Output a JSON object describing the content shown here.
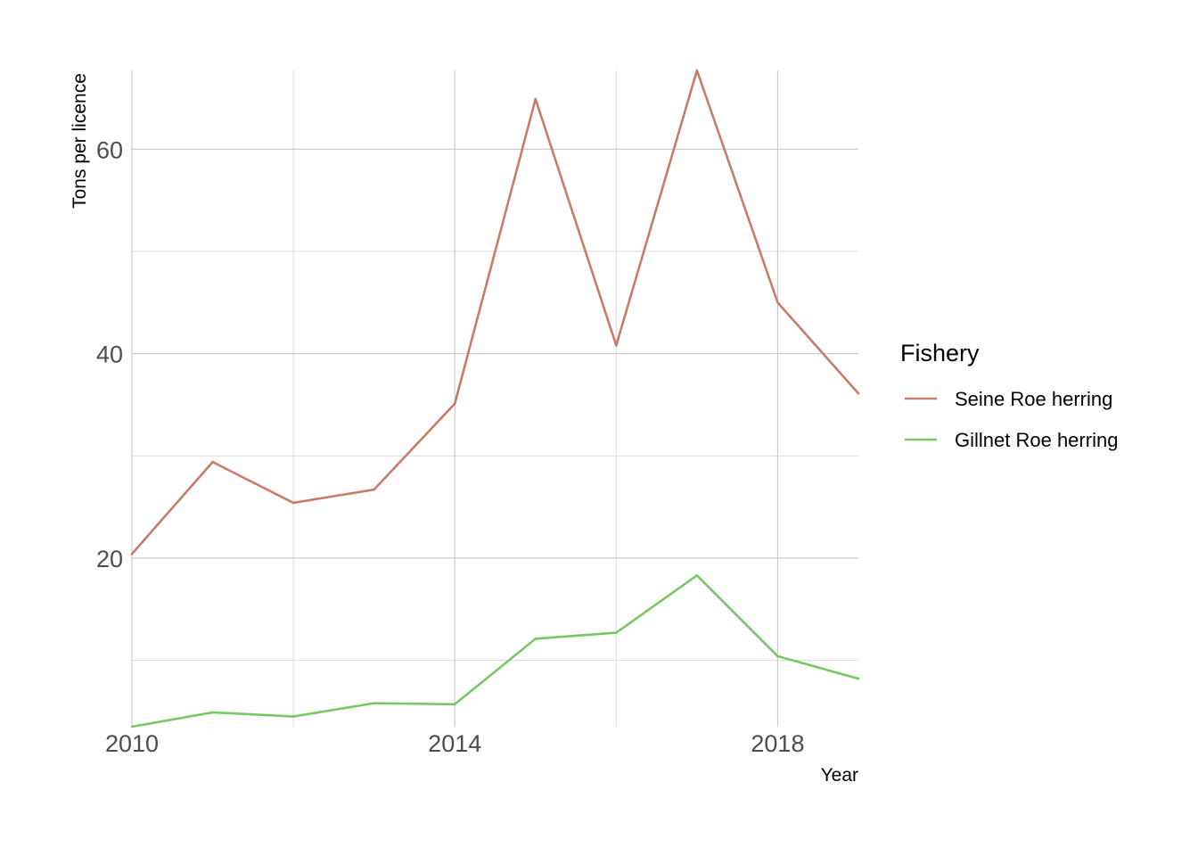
{
  "chart_data": {
    "type": "line",
    "title": "",
    "xlabel": "Year",
    "ylabel": "Tons per licence",
    "x": [
      2010,
      2011,
      2012,
      2013,
      2014,
      2015,
      2016,
      2017,
      2018,
      2019
    ],
    "xlim": [
      2010,
      2019
    ],
    "ylim": [
      3.5,
      67.7
    ],
    "x_ticks": [
      2010,
      2014,
      2018
    ],
    "x_tick_labels": [
      "2010",
      "2014",
      "2018"
    ],
    "y_ticks": [
      20,
      40,
      60
    ],
    "y_tick_labels": [
      "20",
      "40",
      "60"
    ],
    "y_minor_ticks": [
      10,
      30,
      50
    ],
    "x_minor_ticks": [
      2012,
      2016
    ],
    "grid": true,
    "legend": {
      "title": "Fishery",
      "position": "right"
    },
    "series": [
      {
        "name": "Seine Roe herring",
        "color": "#c87b6b",
        "values": [
          20.4,
          29.4,
          25.4,
          26.7,
          35.1,
          64.9,
          40.8,
          67.7,
          45.0,
          36.1
        ]
      },
      {
        "name": "Gillnet Roe herring",
        "color": "#77c865",
        "values": [
          3.5,
          4.9,
          4.5,
          5.8,
          5.7,
          12.1,
          12.7,
          18.3,
          10.4,
          8.2
        ]
      }
    ]
  }
}
